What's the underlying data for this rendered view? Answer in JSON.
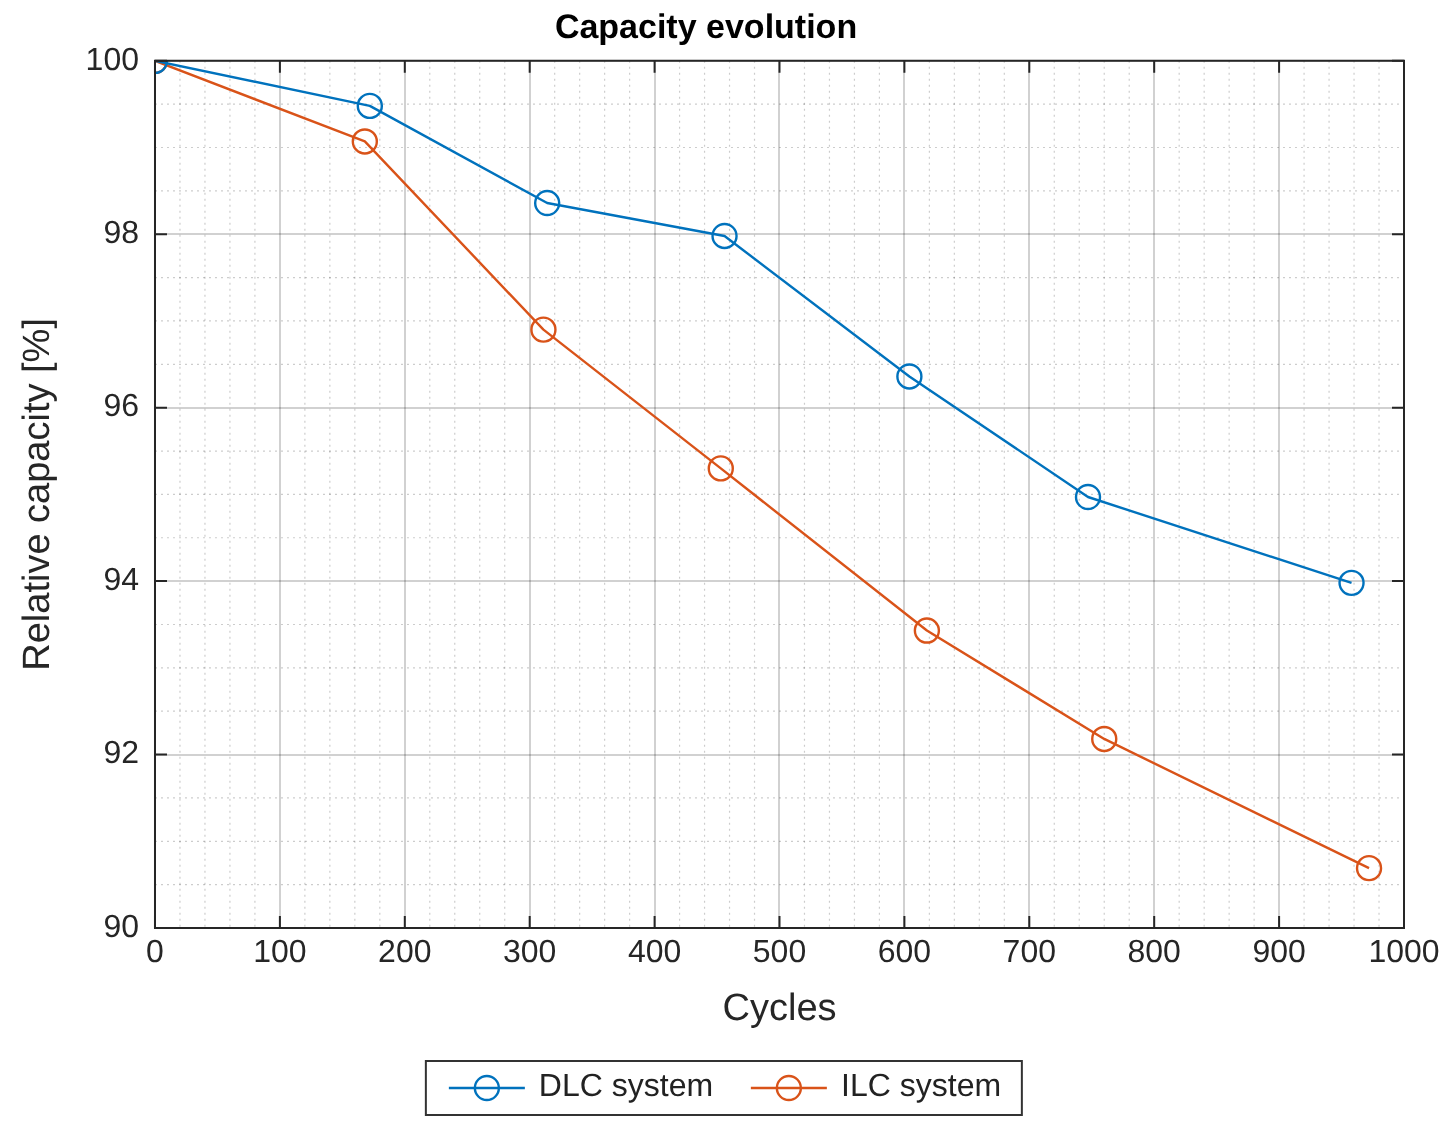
{
  "chart_data": {
    "type": "line",
    "title": "Capacity evolution",
    "xlabel": "Cycles",
    "ylabel": "Relative capacity [%]",
    "xlim": [
      0,
      1000
    ],
    "xticks": [
      0,
      100,
      200,
      300,
      400,
      500,
      600,
      700,
      800,
      900,
      1000
    ],
    "ylim": [
      90,
      100
    ],
    "yticks": [
      90,
      92,
      94,
      96,
      98,
      100
    ],
    "grid": true,
    "legend": "bottom",
    "marker": "circle",
    "line_style": "solid",
    "series": [
      {
        "name": "DLC system",
        "color": "#0072bd",
        "x": [
          0,
          172,
          314,
          456,
          604,
          747,
          958
        ],
        "values": [
          100,
          99.48,
          98.36,
          97.98,
          96.36,
          94.97,
          93.98
        ]
      },
      {
        "name": "ILC system",
        "color": "#d95319",
        "x": [
          0,
          168,
          311,
          453,
          618,
          760,
          972
        ],
        "values": [
          100,
          99.07,
          96.9,
          95.3,
          93.43,
          92.18,
          90.69
        ]
      }
    ]
  }
}
